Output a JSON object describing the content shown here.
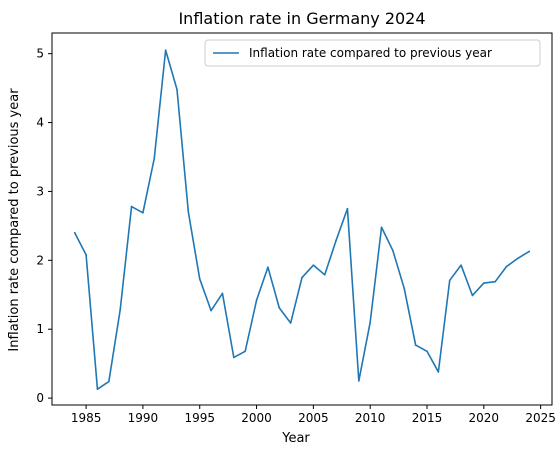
{
  "colors": {
    "series": "#1f77b4",
    "axis": "#000000",
    "background": "#ffffff"
  },
  "chart_data": {
    "type": "line",
    "title": "Inflation rate in Germany 2024",
    "xlabel": "Year",
    "ylabel": "Inflation rate compared to previous year",
    "xlim": [
      1982,
      2026
    ],
    "ylim": [
      -0.1,
      5.3
    ],
    "xticks": [
      1985,
      1990,
      1995,
      2000,
      2005,
      2010,
      2015,
      2020,
      2025
    ],
    "yticks": [
      0,
      1,
      2,
      3,
      4,
      5
    ],
    "grid": false,
    "legend_position": "top-right",
    "series": [
      {
        "name": "Inflation rate compared to previous year",
        "x": [
          1984,
          1985,
          1986,
          1987,
          1988,
          1989,
          1990,
          1991,
          1992,
          1993,
          1994,
          1995,
          1996,
          1997,
          1998,
          1999,
          2000,
          2001,
          2002,
          2003,
          2004,
          2005,
          2006,
          2007,
          2008,
          2009,
          2010,
          2011,
          2012,
          2013,
          2014,
          2015,
          2016,
          2017,
          2018,
          2019,
          2020,
          2021,
          2022,
          2023,
          2024
        ],
        "y": [
          2.4,
          2.08,
          0.13,
          0.24,
          1.28,
          2.78,
          2.69,
          3.48,
          5.05,
          4.48,
          2.7,
          1.73,
          1.27,
          1.52,
          0.59,
          0.68,
          1.42,
          1.9,
          1.31,
          1.09,
          1.75,
          1.93,
          1.79,
          2.29,
          2.75,
          0.25,
          1.1,
          2.48,
          2.14,
          1.59,
          0.77,
          0.68,
          0.38,
          1.71,
          1.93,
          1.49,
          1.67,
          1.69,
          1.91,
          2.03,
          2.13
        ]
      }
    ]
  }
}
